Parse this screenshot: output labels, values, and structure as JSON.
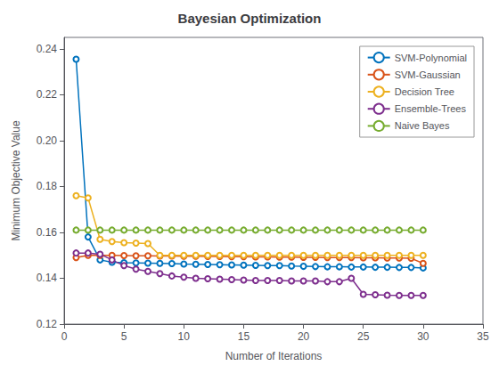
{
  "chart_data": {
    "type": "line",
    "title": "Bayesian Optimization",
    "xlabel": "Number of Iterations",
    "ylabel": "Minimum Objective Value",
    "xlim": [
      0,
      35
    ],
    "ylim": [
      0.12,
      0.245
    ],
    "xticks": [
      0,
      5,
      10,
      15,
      20,
      25,
      30,
      35
    ],
    "yticks": [
      0.12,
      0.14,
      0.16,
      0.18,
      {
        "value": 0.2,
        "label": "0.20"
      },
      0.22,
      0.24
    ],
    "grid": false,
    "legend": "upper right",
    "marker": "o",
    "x": [
      1,
      2,
      3,
      4,
      5,
      6,
      7,
      8,
      9,
      10,
      11,
      12,
      13,
      14,
      15,
      16,
      17,
      18,
      19,
      20,
      21,
      22,
      23,
      24,
      25,
      26,
      27,
      28,
      29,
      30
    ],
    "series": [
      {
        "name": "SVM-Polynomial",
        "color": "#0072BD",
        "values": [
          0.2355,
          0.158,
          0.148,
          0.147,
          0.1468,
          0.1467,
          0.1466,
          0.1465,
          0.1464,
          0.1462,
          0.1461,
          0.146,
          0.1459,
          0.1458,
          0.1457,
          0.1456,
          0.1455,
          0.1455,
          0.1453,
          0.1452,
          0.1451,
          0.145,
          0.145,
          0.1449,
          0.1449,
          0.1448,
          0.1448,
          0.1447,
          0.1447,
          0.1445
        ]
      },
      {
        "name": "SVM-Gaussian",
        "color": "#D95319",
        "values": [
          0.149,
          0.15,
          0.15,
          0.15,
          0.1499,
          0.1498,
          0.1498,
          0.1497,
          0.1497,
          0.1496,
          0.1496,
          0.1495,
          0.1495,
          0.1494,
          0.1494,
          0.1493,
          0.1493,
          0.1492,
          0.1492,
          0.1491,
          0.1491,
          0.149,
          0.149,
          0.149,
          0.1489,
          0.1489,
          0.1488,
          0.1488,
          0.1487,
          0.1465
        ]
      },
      {
        "name": "Decision Tree",
        "color": "#EDB120",
        "values": [
          0.176,
          0.175,
          0.157,
          0.156,
          0.1555,
          0.1553,
          0.1551,
          0.15,
          0.15,
          0.15,
          0.15,
          0.15,
          0.15,
          0.15,
          0.15,
          0.15,
          0.15,
          0.15,
          0.15,
          0.15,
          0.15,
          0.15,
          0.15,
          0.15,
          0.15,
          0.15,
          0.15,
          0.15,
          0.15,
          0.15
        ]
      },
      {
        "name": "Ensemble-Trees",
        "color": "#7E2F8E",
        "values": [
          0.151,
          0.151,
          0.1505,
          0.148,
          0.1455,
          0.144,
          0.143,
          0.142,
          0.141,
          0.1405,
          0.14,
          0.1398,
          0.1396,
          0.1394,
          0.1392,
          0.139,
          0.139,
          0.139,
          0.1388,
          0.1388,
          0.1388,
          0.1385,
          0.1385,
          0.14,
          0.133,
          0.1328,
          0.1326,
          0.1325,
          0.1325,
          0.1325
        ]
      },
      {
        "name": "Naive Bayes",
        "color": "#77AC30",
        "values": [
          0.161,
          0.161,
          0.161,
          0.161,
          0.161,
          0.161,
          0.161,
          0.161,
          0.161,
          0.161,
          0.161,
          0.161,
          0.161,
          0.161,
          0.161,
          0.161,
          0.161,
          0.161,
          0.161,
          0.161,
          0.161,
          0.161,
          0.161,
          0.161,
          0.161,
          0.161,
          0.161,
          0.161,
          0.161,
          0.161
        ]
      }
    ]
  }
}
